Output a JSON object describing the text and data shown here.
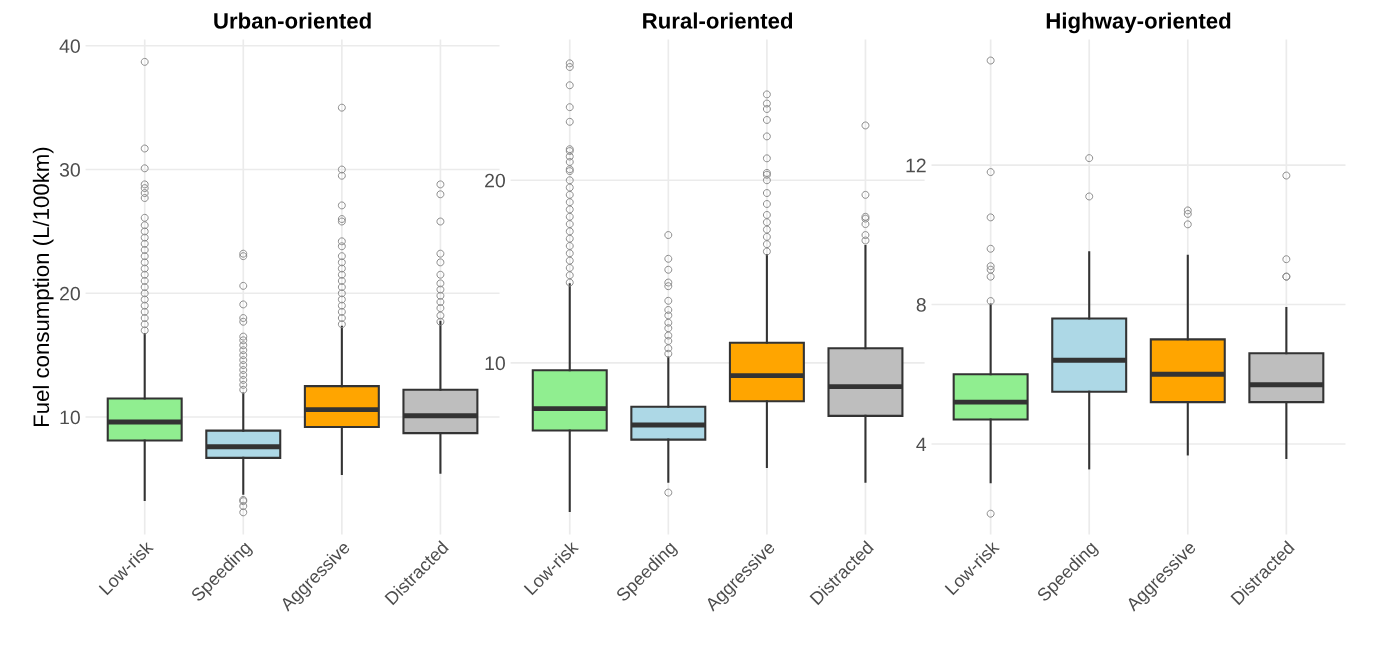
{
  "chart_data": [
    {
      "type": "box",
      "title": "Urban-oriented",
      "ylabel": "Fuel consumption (L/100km)",
      "categories": [
        "Low-risk",
        "Speeding",
        "Aggressive",
        "Distracted"
      ],
      "colors": [
        "#90ee90",
        "#add8e6",
        "#ffa500",
        "#bebebe"
      ],
      "ylim": [
        0.5,
        40.5
      ],
      "yticks": [
        10,
        20,
        30,
        40
      ],
      "grid": true,
      "boxes": [
        {
          "low": 3.3,
          "q1": 8.1,
          "median": 9.6,
          "q3": 11.5,
          "high": 16.7,
          "outliers": [
            38.7,
            31.7,
            30.1,
            28.8,
            28.5,
            28.1,
            27.7,
            26.1,
            25.5,
            25.0,
            24.5,
            24.0,
            23.5,
            23.0,
            22.5,
            22.0,
            21.5,
            21.0,
            20.5,
            20.0,
            19.5,
            19.0,
            18.5,
            18.0,
            17.5,
            17.0
          ]
        },
        {
          "low": 3.8,
          "q1": 6.7,
          "median": 7.6,
          "q3": 8.9,
          "high": 11.9,
          "outliers": [
            23.2,
            23.0,
            20.6,
            19.1,
            18.0,
            17.7,
            16.5,
            16.2,
            15.8,
            15.4,
            15.0,
            14.6,
            14.2,
            13.8,
            13.4,
            13.0,
            12.6,
            12.2,
            3.3,
            3.2,
            2.8,
            2.3
          ]
        },
        {
          "low": 5.4,
          "q1": 9.2,
          "median": 10.6,
          "q3": 12.5,
          "high": 17.3,
          "outliers": [
            35.0,
            30.0,
            29.5,
            27.1,
            26.0,
            25.8,
            24.2,
            23.8,
            23.0,
            22.5,
            22.0,
            21.5,
            21.0,
            20.5,
            20.0,
            19.5,
            19.0,
            18.5,
            18.0,
            17.5
          ]
        },
        {
          "low": 5.5,
          "q1": 8.7,
          "median": 10.1,
          "q3": 12.2,
          "high": 17.7,
          "outliers": [
            28.8,
            28.0,
            25.8,
            23.2,
            22.5,
            21.5,
            20.8,
            20.3,
            19.8,
            19.3,
            18.8,
            18.2,
            17.7
          ]
        }
      ]
    },
    {
      "type": "box",
      "title": "Rural-oriented",
      "categories": [
        "Low-risk",
        "Speeding",
        "Aggressive",
        "Distracted"
      ],
      "colors": [
        "#90ee90",
        "#add8e6",
        "#ffa500",
        "#bebebe"
      ],
      "ylim": [
        0.6,
        27.7
      ],
      "yticks": [
        10,
        20
      ],
      "grid": true,
      "boxes": [
        {
          "low": 1.9,
          "q1": 6.3,
          "median": 7.5,
          "q3": 9.6,
          "high": 14.3,
          "outliers": [
            26.4,
            26.2,
            25.2,
            24.0,
            23.2,
            21.7,
            21.6,
            21.3,
            21.0,
            20.6,
            20.5,
            20.0,
            19.6,
            19.2,
            18.8,
            18.4,
            18.0,
            17.6,
            17.2,
            16.8,
            16.4,
            16.0,
            15.6,
            15.2,
            14.8,
            14.4
          ]
        },
        {
          "low": 3.5,
          "q1": 5.8,
          "median": 6.6,
          "q3": 7.6,
          "high": 10.3,
          "outliers": [
            17.0,
            15.7,
            15.1,
            14.4,
            14.2,
            13.4,
            12.9,
            12.6,
            12.2,
            11.9,
            11.5,
            11.2,
            10.8,
            10.5,
            2.9
          ]
        },
        {
          "low": 4.3,
          "q1": 7.9,
          "median": 9.3,
          "q3": 11.1,
          "high": 15.9,
          "outliers": [
            24.7,
            24.2,
            23.9,
            23.3,
            22.4,
            21.2,
            20.4,
            20.3,
            20.0,
            19.3,
            18.7,
            18.1,
            17.7,
            17.3,
            16.9,
            16.5,
            16.1
          ]
        },
        {
          "low": 3.5,
          "q1": 7.1,
          "median": 8.7,
          "q3": 10.8,
          "high": 16.4,
          "outliers": [
            23.0,
            19.2,
            18.0,
            17.9,
            17.6,
            17.0,
            16.7
          ]
        }
      ]
    },
    {
      "type": "box",
      "title": "Highway-oriented",
      "categories": [
        "Low-risk",
        "Speeding",
        "Aggressive",
        "Distracted"
      ],
      "colors": [
        "#90ee90",
        "#add8e6",
        "#ffa500",
        "#bebebe"
      ],
      "ylim": [
        1.4,
        15.6
      ],
      "yticks": [
        4,
        8,
        12
      ],
      "grid": true,
      "boxes": [
        {
          "low": 2.9,
          "q1": 4.7,
          "median": 5.2,
          "q3": 6.0,
          "high": 8.0,
          "outliers": [
            15.0,
            11.8,
            10.5,
            9.6,
            9.1,
            9.0,
            8.8,
            8.1,
            2.0
          ]
        },
        {
          "low": 3.3,
          "q1": 5.5,
          "median": 6.4,
          "q3": 7.6,
          "high": 9.5,
          "outliers": [
            12.2,
            11.1
          ]
        },
        {
          "low": 3.7,
          "q1": 5.2,
          "median": 6.0,
          "q3": 7.0,
          "high": 9.4,
          "outliers": [
            10.7,
            10.6,
            10.3
          ]
        },
        {
          "low": 3.6,
          "q1": 5.2,
          "median": 5.7,
          "q3": 6.6,
          "high": 7.9,
          "outliers": [
            11.7,
            9.3,
            8.8,
            8.8
          ]
        }
      ]
    }
  ]
}
